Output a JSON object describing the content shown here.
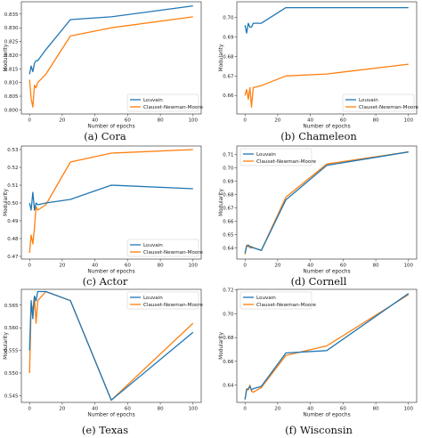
{
  "colors": {
    "louvain": "#1f77b4",
    "cnm": "#ff7f0e"
  },
  "chart_data": [
    {
      "type": "line",
      "caption": "(a) Cora",
      "xlabel": "Number of epochs",
      "ylabel": "Modularity",
      "xlim": [
        -5,
        105
      ],
      "ylim": [
        0.7985,
        0.8395
      ],
      "xticks": [
        0,
        20,
        40,
        60,
        80,
        100
      ],
      "yticks": [
        0.8,
        0.805,
        0.81,
        0.815,
        0.82,
        0.825,
        0.83,
        0.835
      ],
      "ytick_decimals": 3,
      "legend_position": "lower-right",
      "series": [
        {
          "name": "Louvain",
          "x": [
            0,
            1,
            2,
            3,
            4,
            5,
            10,
            25,
            50,
            100
          ],
          "y": [
            0.813,
            0.816,
            0.814,
            0.817,
            0.818,
            0.818,
            0.822,
            0.833,
            0.834,
            0.838
          ]
        },
        {
          "name": "Clauset-Newman-Moore",
          "x": [
            0,
            1,
            2,
            3,
            4,
            5,
            10,
            25,
            50,
            100
          ],
          "y": [
            0.811,
            0.804,
            0.801,
            0.809,
            0.808,
            0.81,
            0.813,
            0.827,
            0.83,
            0.834
          ]
        }
      ]
    },
    {
      "type": "line",
      "caption": "(b) Chameleon",
      "xlabel": "Number of epochs",
      "ylabel": "Modularity",
      "xlim": [
        -5,
        105
      ],
      "ylim": [
        0.6505,
        0.708
      ],
      "xticks": [
        0,
        20,
        40,
        60,
        80,
        100
      ],
      "yticks": [
        0.66,
        0.67,
        0.68,
        0.69,
        0.7
      ],
      "ytick_decimals": 2,
      "legend_position": "lower-right",
      "series": [
        {
          "name": "Louvain",
          "x": [
            0,
            1,
            2,
            3,
            4,
            5,
            10,
            25,
            50,
            100
          ],
          "y": [
            0.696,
            0.692,
            0.697,
            0.695,
            0.695,
            0.697,
            0.697,
            0.705,
            0.705,
            0.705
          ]
        },
        {
          "name": "Clauset-Newman-Moore",
          "x": [
            0,
            1,
            2,
            3,
            4,
            5,
            10,
            25,
            50,
            100
          ],
          "y": [
            0.66,
            0.663,
            0.658,
            0.664,
            0.654,
            0.664,
            0.665,
            0.67,
            0.671,
            0.676
          ]
        }
      ]
    },
    {
      "type": "line",
      "caption": "(c) Actor",
      "xlabel": "Number of epochs",
      "ylabel": "Modularity",
      "xlim": [
        -5,
        105
      ],
      "ylim": [
        0.4685,
        0.532
      ],
      "xticks": [
        0,
        20,
        40,
        60,
        80,
        100
      ],
      "yticks": [
        0.47,
        0.48,
        0.49,
        0.5,
        0.51,
        0.52,
        0.53
      ],
      "ytick_decimals": 2,
      "legend_position": "lower-right",
      "series": [
        {
          "name": "Louvain",
          "x": [
            0,
            1,
            2,
            3,
            4,
            5,
            10,
            25,
            50,
            100
          ],
          "y": [
            0.5,
            0.496,
            0.506,
            0.496,
            0.5,
            0.499,
            0.5,
            0.502,
            0.51,
            0.508
          ]
        },
        {
          "name": "Clauset-Newman-Moore",
          "x": [
            0,
            1,
            2,
            3,
            4,
            5,
            10,
            25,
            50,
            100
          ],
          "y": [
            0.472,
            0.482,
            0.477,
            0.486,
            0.498,
            0.496,
            0.499,
            0.523,
            0.528,
            0.53
          ]
        }
      ]
    },
    {
      "type": "line",
      "caption": "(d) Cornell",
      "xlabel": "Number of epochs",
      "ylabel": "Modularity",
      "xlim": [
        -5,
        105
      ],
      "ylim": [
        0.6315,
        0.7165
      ],
      "xticks": [
        0,
        20,
        40,
        60,
        80,
        100
      ],
      "yticks": [
        0.64,
        0.65,
        0.66,
        0.67,
        0.68,
        0.69,
        0.7,
        0.71
      ],
      "ytick_decimals": 2,
      "legend_position": "top-left",
      "series": [
        {
          "name": "Louvain",
          "x": [
            0,
            1,
            2,
            3,
            4,
            5,
            10,
            25,
            50,
            100
          ],
          "y": [
            0.636,
            0.641,
            0.642,
            0.641,
            0.64,
            0.64,
            0.638,
            0.676,
            0.702,
            0.712
          ]
        },
        {
          "name": "Clauset-Newman-Moore",
          "x": [
            0,
            1,
            2,
            3,
            4,
            5,
            10,
            25,
            50,
            100
          ],
          "y": [
            0.635,
            0.642,
            0.641,
            0.64,
            0.641,
            0.64,
            0.638,
            0.678,
            0.703,
            0.712
          ]
        }
      ]
    },
    {
      "type": "line",
      "caption": "(e) Texas",
      "xlabel": "Number of epochs",
      "ylabel": "Modularity",
      "xlim": [
        -5,
        105
      ],
      "ylim": [
        0.5435,
        0.5685
      ],
      "xticks": [
        0,
        20,
        40,
        60,
        80,
        100
      ],
      "yticks": [
        0.545,
        0.55,
        0.555,
        0.56,
        0.565
      ],
      "ytick_decimals": 3,
      "legend_position": "top-right",
      "series": [
        {
          "name": "Louvain",
          "x": [
            0,
            1,
            2,
            3,
            4,
            5,
            10,
            25,
            50,
            100
          ],
          "y": [
            0.555,
            0.566,
            0.562,
            0.567,
            0.566,
            0.568,
            0.568,
            0.566,
            0.544,
            0.559
          ]
        },
        {
          "name": "Clauset-Newman-Moore",
          "x": [
            0,
            1,
            2,
            3,
            4,
            5,
            10,
            25,
            50,
            100
          ],
          "y": [
            0.55,
            0.565,
            0.564,
            0.567,
            0.561,
            0.566,
            0.568,
            0.566,
            0.544,
            0.561
          ]
        }
      ]
    },
    {
      "type": "line",
      "caption": "(f) Wisconsin",
      "xlabel": "Number of epochs",
      "ylabel": "Modularity",
      "xlim": [
        -5,
        105
      ],
      "ylim": [
        0.6255,
        0.7205
      ],
      "xticks": [
        0,
        20,
        40,
        60,
        80,
        100
      ],
      "yticks": [
        0.64,
        0.66,
        0.68,
        0.7,
        0.72
      ],
      "ytick_decimals": 2,
      "legend_position": "top-left",
      "series": [
        {
          "name": "Louvain",
          "x": [
            0,
            1,
            2,
            3,
            4,
            5,
            10,
            25,
            50,
            100
          ],
          "y": [
            0.628,
            0.636,
            0.637,
            0.639,
            0.636,
            0.637,
            0.639,
            0.667,
            0.669,
            0.717
          ]
        },
        {
          "name": "Clauset-Newman-Moore",
          "x": [
            0,
            1,
            2,
            3,
            4,
            5,
            10,
            25,
            50,
            100
          ],
          "y": [
            0.628,
            0.637,
            0.636,
            0.64,
            0.635,
            0.634,
            0.638,
            0.665,
            0.673,
            0.716
          ]
        }
      ]
    }
  ]
}
